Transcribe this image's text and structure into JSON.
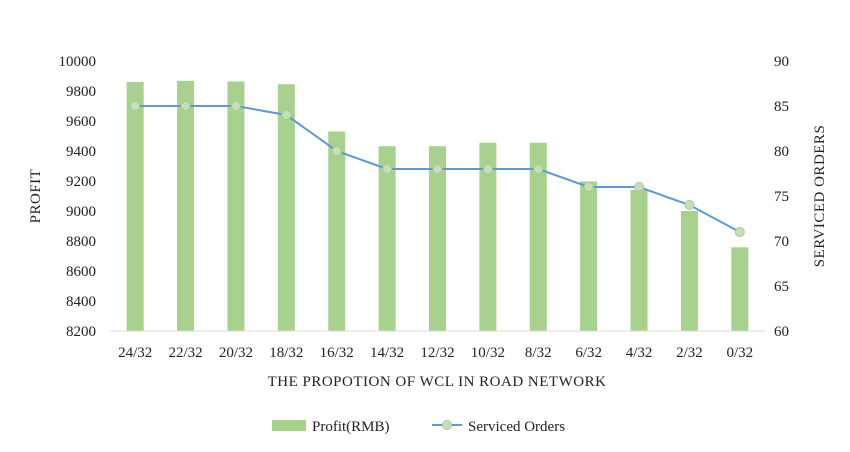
{
  "chart_data": {
    "type": "bar+line",
    "categories": [
      "24/32",
      "22/32",
      "20/32",
      "18/32",
      "16/32",
      "14/32",
      "12/32",
      "10/32",
      "8/32",
      "6/32",
      "4/32",
      "2/32",
      "0/32"
    ],
    "series": [
      {
        "name": "Profit(RMB)",
        "type": "bar",
        "axis": "left",
        "color": "#a9d18e",
        "values": [
          9860,
          9868,
          9863,
          9845,
          9530,
          9432,
          9432,
          9455,
          9455,
          9197,
          9140,
          9000,
          8758
        ]
      },
      {
        "name": "Serviced Orders",
        "type": "line",
        "axis": "right",
        "color": "#5b9bd5",
        "marker_color": "#c5e0b4",
        "values": [
          85,
          85,
          85,
          84,
          80,
          78,
          78,
          78,
          78,
          76,
          76,
          74,
          71
        ]
      }
    ],
    "xlabel": "THE PROPOTION OF WCL IN ROAD NETWORK",
    "ylabel": "PROFIT",
    "y2label": "SERVICED  ORDERS",
    "ylim": [
      8200,
      10000
    ],
    "yticks": [
      8200,
      8400,
      8600,
      8800,
      9000,
      9200,
      9400,
      9600,
      9800,
      10000
    ],
    "y2lim": [
      60,
      90
    ],
    "y2ticks": [
      60,
      65,
      70,
      75,
      80,
      85,
      90
    ],
    "grid": false,
    "legend_position": "bottom"
  }
}
